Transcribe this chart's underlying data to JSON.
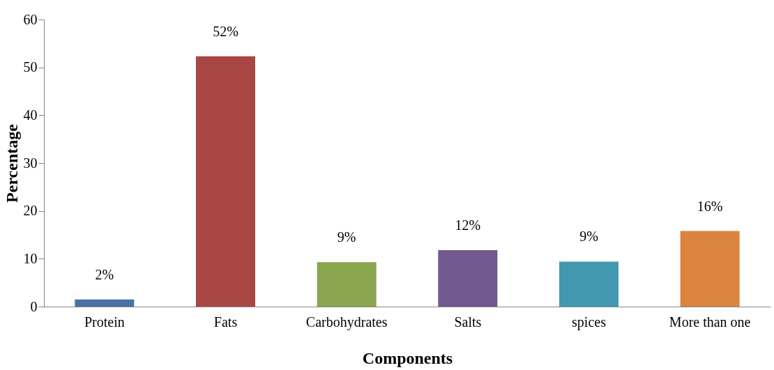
{
  "chart_data": {
    "type": "bar",
    "xlabel": "Components",
    "ylabel": "Percentage",
    "categories": [
      "Protein",
      "Fats",
      "Carbohydrates",
      "Salts",
      "spices",
      "More than one"
    ],
    "values": [
      1.5,
      52.3,
      9.3,
      11.8,
      9.4,
      15.8
    ],
    "colors": [
      "#4a72a6",
      "#a84644",
      "#89a54e",
      "#71588f",
      "#4198af",
      "#db843d"
    ],
    "value_labels": [
      "2%",
      "52%",
      "9%",
      "12%",
      "9%",
      "16%"
    ],
    "ylim": [
      0,
      60
    ],
    "yticks": [
      0,
      10,
      20,
      30,
      40,
      50,
      60
    ],
    "grid": false
  }
}
